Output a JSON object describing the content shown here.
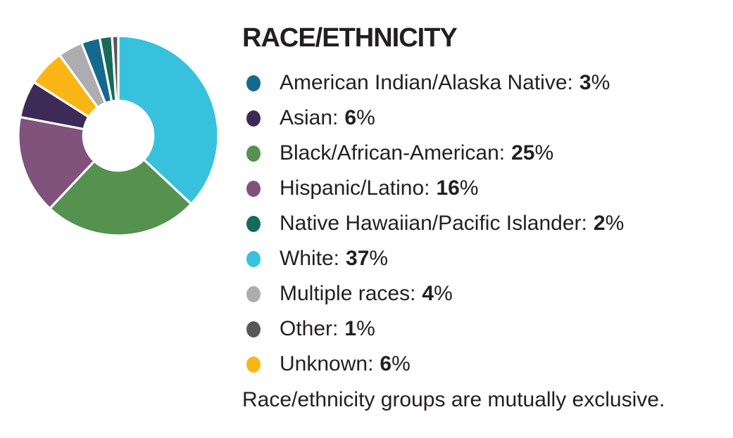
{
  "header": {
    "title": "RACE/ETHNICITY"
  },
  "legend": {
    "items": [
      {
        "label": "American Indian/Alaska Native:",
        "value": "3",
        "unit": "%",
        "color": "#16698E"
      },
      {
        "label": "Asian:",
        "value": "6",
        "unit": "%",
        "color": "#3E2A56"
      },
      {
        "label": "Black/African-American:",
        "value": "25",
        "unit": "%",
        "color": "#55914F"
      },
      {
        "label": "Hispanic/Latino:",
        "value": "16",
        "unit": "%",
        "color": "#80527C"
      },
      {
        "label": "Native Hawaiian/Pacific Islander:",
        "value": "2",
        "unit": "%",
        "color": "#156B58"
      },
      {
        "label": "White:",
        "value": "37",
        "unit": "%",
        "color": "#38C1DC"
      },
      {
        "label": "Multiple races:",
        "value": "4",
        "unit": "%",
        "color": "#ADADAF"
      },
      {
        "label": "Other:",
        "value": "1",
        "unit": "%",
        "color": "#58585A"
      },
      {
        "label": "Unknown:",
        "value": "6",
        "unit": "%",
        "color": "#FBB616"
      }
    ]
  },
  "footnote": {
    "text": "Race/ethnicity groups are mutually exclusive."
  },
  "chart_data": {
    "type": "pie",
    "subtype": "donut",
    "title": "RACE/ETHNICITY",
    "categories": [
      "American Indian/Alaska Native",
      "Asian",
      "Black/African-American",
      "Hispanic/Latino",
      "Native Hawaiian/Pacific Islander",
      "White",
      "Multiple races",
      "Other",
      "Unknown"
    ],
    "values": [
      3,
      6,
      25,
      16,
      2,
      37,
      4,
      1,
      6
    ],
    "colors": [
      "#16698E",
      "#3E2A56",
      "#55914F",
      "#80527C",
      "#156B58",
      "#38C1DC",
      "#ADADAF",
      "#58585A",
      "#FBB616"
    ],
    "slice_order_clockwise_from_top": [
      5,
      2,
      3,
      1,
      8,
      6,
      0,
      4,
      7
    ],
    "start_angle_deg": 0,
    "hole_ratio": 0.35,
    "slice_gap_color": "#FFFFFF",
    "legend_position": "right",
    "note": "Race/ethnicity groups are mutually exclusive."
  }
}
